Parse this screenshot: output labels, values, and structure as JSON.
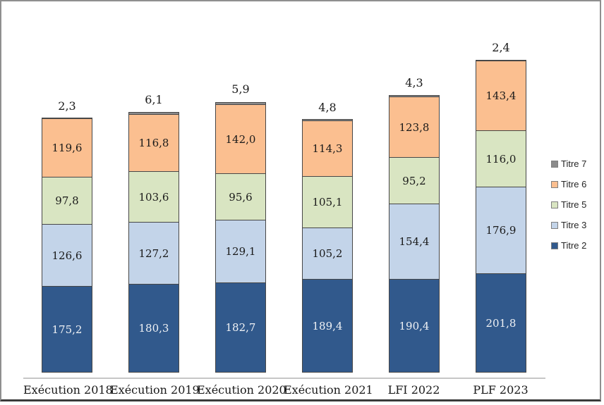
{
  "chart_data": {
    "type": "bar",
    "stacked": true,
    "title": "",
    "xlabel": "",
    "ylabel": "",
    "ylim": [
      0,
      650
    ],
    "grid": false,
    "legend_position": "right",
    "decimal_separator": ",",
    "categories": [
      "Exécution 2018",
      "Exécution 2019",
      "Exécution 2020",
      "Exécution 2021",
      "LFI 2022",
      "PLF 2023"
    ],
    "series": [
      {
        "name": "Titre 2",
        "color": "#31598c",
        "label_color": "#f0f2f5",
        "values": [
          175.2,
          180.3,
          182.7,
          189.4,
          190.4,
          201.8
        ],
        "labels": [
          "175,2",
          "180,3",
          "182,7",
          "189,4",
          "190,4",
          "201,8"
        ],
        "labels_above_bar": false
      },
      {
        "name": "Titre 3",
        "color": "#c3d4e9",
        "label_color": "#1a1a1a",
        "values": [
          126.6,
          127.2,
          129.1,
          105.2,
          154.4,
          176.9
        ],
        "labels": [
          "126,6",
          "127,2",
          "129,1",
          "105,2",
          "154,4",
          "176,9"
        ],
        "labels_above_bar": false
      },
      {
        "name": "Titre 5",
        "color": "#d9e5c2",
        "label_color": "#1a1a1a",
        "values": [
          97.8,
          103.6,
          95.6,
          105.1,
          95.2,
          116.0
        ],
        "labels": [
          "97,8",
          "103,6",
          "95,6",
          "105,1",
          "95,2",
          "116,0"
        ],
        "labels_above_bar": false
      },
      {
        "name": "Titre 6",
        "color": "#fbbf90",
        "label_color": "#1a1a1a",
        "values": [
          119.6,
          116.8,
          142.0,
          114.3,
          123.8,
          143.4
        ],
        "labels": [
          "119,6",
          "116,8",
          "142,0",
          "114,3",
          "123,8",
          "143,4"
        ],
        "labels_above_bar": false
      },
      {
        "name": "Titre 7",
        "color": "#8b8b8b",
        "label_color": "#1a1a1a",
        "values": [
          2.3,
          6.1,
          5.9,
          4.8,
          4.3,
          2.4
        ],
        "labels": [
          "2,3",
          "6,1",
          "5,9",
          "4,8",
          "4,3",
          "2,4"
        ],
        "labels_above_bar": true
      }
    ],
    "legend_items": [
      "Titre 7",
      "Titre 6",
      "Titre 5",
      "Titre 3",
      "Titre 2"
    ]
  },
  "layout_colors": {
    "axis_line": "#c6c6c6",
    "segment_border": "#474747",
    "frame_border": "#8f8f8f",
    "frame_border_bottom": "#3a3a3a"
  }
}
